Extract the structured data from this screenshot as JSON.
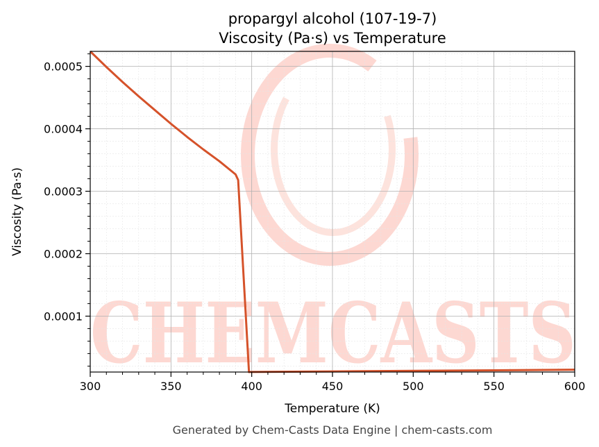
{
  "footer": "Generated by Chem-Casts Data Engine | chem-casts.com",
  "watermark": "CHEMCASTS",
  "colors": {
    "line": "#d5522a",
    "watermark": "#fdd8d2",
    "grid_major": "#b0b0b0",
    "grid_minor": "#e6e6e6"
  },
  "chart_data": {
    "type": "line",
    "title": "propargyl alcohol (107-19-7)",
    "subtitle": "Viscosity (Pa·s) vs Temperature",
    "xlabel": "Temperature (K)",
    "ylabel": "Viscosity (Pa·s)",
    "xlim": [
      300,
      600
    ],
    "ylim": [
      1.05e-05,
      0.000524
    ],
    "xticks": [
      300,
      350,
      400,
      450,
      500,
      550,
      600
    ],
    "xtick_labels": [
      "300",
      "350",
      "400",
      "450",
      "500",
      "550",
      "600"
    ],
    "yticks": [
      0.0001,
      0.0002,
      0.0003,
      0.0004,
      0.0005
    ],
    "ytick_labels": [
      "0.0001",
      "0.0002",
      "0.0003",
      "0.0004",
      "0.0005"
    ],
    "grid": true,
    "series": [
      {
        "x": [
          300,
          310,
          320,
          330,
          340,
          350,
          360,
          370,
          380,
          390,
          391.6,
          398.3,
          400,
          450,
          500,
          550,
          600
        ],
        "y": [
          0.000524,
          0.000499,
          0.000475,
          0.000452,
          0.00043,
          0.000408,
          0.000387,
          0.000367,
          0.000348,
          0.000327,
          0.000318,
          1.05e-05,
          1.07e-05,
          1.15e-05,
          1.24e-05,
          1.33e-05,
          1.42e-05
        ]
      }
    ]
  }
}
